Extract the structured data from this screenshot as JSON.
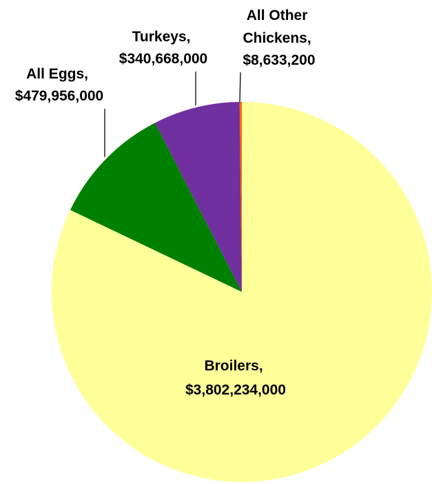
{
  "chart_data": {
    "type": "pie",
    "title": "",
    "start_angle_deg": 0,
    "direction": "clockwise",
    "legend": "none",
    "slices": [
      {
        "label": "Broilers,",
        "value_label": "$3,802,234,000",
        "value": 3802234000,
        "color": "#FFFF99"
      },
      {
        "label": "All Eggs,",
        "value_label": "$479,956,000",
        "value": 479956000,
        "color": "#008000"
      },
      {
        "label": "Turkeys,",
        "value_label": "$340,668,000",
        "value": 340668000,
        "color": "#7030A0"
      },
      {
        "label": "All Other Chickens,",
        "label_lines": [
          "All Other",
          "Chickens,"
        ],
        "value_label": "$8,633,200",
        "value": 8633200,
        "color": "#FF6600"
      }
    ]
  }
}
